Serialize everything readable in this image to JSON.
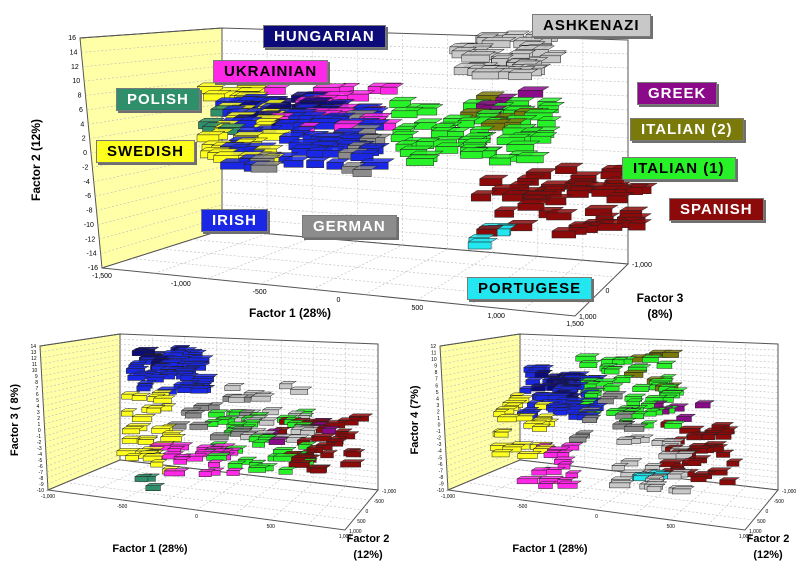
{
  "chart_data": [
    {
      "type": "scatter",
      "xlabel": "Factor 1 (28%)",
      "ylabel": "Factor 2 (12%)",
      "zlabel": "Factor 3 (8%)",
      "x_ticks": [
        "-1,500",
        "-1,000",
        "-500",
        "0",
        "500",
        "1,000",
        "1,500"
      ],
      "y_ticks": [
        "16",
        "14",
        "12",
        "10",
        "8",
        "6",
        "4",
        "2",
        "0",
        "-2",
        "-4",
        "-6",
        "-8",
        "-10",
        "-12",
        "-14",
        "-16"
      ],
      "z_ticks": [
        "-1,000",
        "0",
        "1,000"
      ],
      "labels": [
        {
          "name": "HUNGARIAN",
          "color": "#0d0a7a",
          "text_color": "#ffffff"
        },
        {
          "name": "ASHKENAZI",
          "color": "#c8c8c8",
          "text_color": "#000000"
        },
        {
          "name": "UKRAINIAN",
          "color": "#ff28e6",
          "text_color": "#000000"
        },
        {
          "name": "POLISH",
          "color": "#2f8f6a",
          "text_color": "#ffffff"
        },
        {
          "name": "GREEK",
          "color": "#8a0a8a",
          "text_color": "#ffffff"
        },
        {
          "name": "ITALIAN (2)",
          "color": "#7a7a0a",
          "text_color": "#ffffff"
        },
        {
          "name": "SWEDISH",
          "color": "#ffff1e",
          "text_color": "#000000"
        },
        {
          "name": "ITALIAN (1)",
          "color": "#27f227",
          "text_color": "#000000"
        },
        {
          "name": "IRISH",
          "color": "#1a28e6",
          "text_color": "#ffffff"
        },
        {
          "name": "GERMAN",
          "color": "#8c8c8c",
          "text_color": "#ffffff"
        },
        {
          "name": "SPANISH",
          "color": "#8c0a0a",
          "text_color": "#ffffff"
        },
        {
          "name": "PORTUGESE",
          "color": "#22e6f0",
          "text_color": "#000000"
        }
      ]
    },
    {
      "type": "scatter",
      "xlabel": "Factor 1 (28%)",
      "ylabel": "Factor 3 ( 8%)",
      "zlabel": "Factor 2 (12%)",
      "x_ticks": [
        "-1,000",
        "-500",
        "0",
        "500",
        "1,000"
      ],
      "y_ticks": [
        "14",
        "13",
        "12",
        "11",
        "10",
        "9",
        "8",
        "7",
        "6",
        "5",
        "4",
        "3",
        "2",
        "1",
        "0",
        "-1",
        "-2",
        "-3",
        "-4",
        "-5",
        "-6",
        "-7",
        "-8",
        "-9",
        "-10"
      ],
      "z_ticks": [
        "-1,000",
        "-500",
        "0",
        "500",
        "1,000"
      ]
    },
    {
      "type": "scatter",
      "xlabel": "Factor 1 (28%)",
      "ylabel": "Factor 4 (7%)",
      "zlabel": "Factor 2 (12%)",
      "x_ticks": [
        "-1,000",
        "-500",
        "0",
        "500",
        "1,000"
      ],
      "y_ticks": [
        "12",
        "11",
        "10",
        "9",
        "8",
        "7",
        "6",
        "5",
        "4",
        "3",
        "2",
        "1",
        "0",
        "-1",
        "-2",
        "-3",
        "-4",
        "-5",
        "-6",
        "-7",
        "-8",
        "-9",
        "-10"
      ],
      "z_ticks": [
        "-1,000",
        "-500",
        "0",
        "500",
        "1,000"
      ]
    }
  ],
  "colors": {
    "Hungarian": "#0d0a7a",
    "Ashkenazi": "#c8c8c8",
    "Ukrainian": "#ff28e6",
    "Polish": "#2f8f6a",
    "Greek": "#8a0a8a",
    "Italian2": "#7a7a0a",
    "Swedish": "#ffff1e",
    "Italian1": "#27f227",
    "Irish": "#1a28e6",
    "German": "#8c8c8c",
    "Spanish": "#8c0a0a",
    "Portugese": "#22e6f0",
    "wall": "#ffffa8"
  }
}
